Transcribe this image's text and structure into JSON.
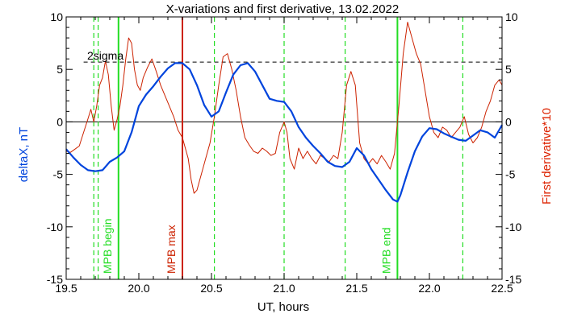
{
  "chart_data": {
    "type": "line",
    "title": "X-variations and first derivative, 13.02.2022",
    "xlabel": "UT, hours",
    "ylabel_left": "deltaX, nT",
    "ylabel_right": "First derivative*10",
    "xlim": [
      19.5,
      22.5
    ],
    "ylim": [
      -15,
      10
    ],
    "xticks": [
      19.5,
      20.0,
      20.5,
      21.0,
      21.5,
      22.0,
      22.5
    ],
    "xtick_labels": [
      "19.5",
      "20.0",
      "20.5",
      "21.0",
      "21.5",
      "22.0",
      "22.5"
    ],
    "yticks": [
      -15,
      -10,
      -5,
      0,
      5,
      10
    ],
    "ytick_labels": [
      "-15",
      "-10",
      "-5",
      "0",
      "5",
      "10"
    ],
    "colors": {
      "deltaX": "#0044dd",
      "derivative": "#cc2200",
      "mpb_max": "#cc2200",
      "mpb_lines": "#22dd22",
      "sigma": "#000000",
      "right_label": "#dd2200",
      "left_label": "#0044dd"
    },
    "sigma_level": 5.7,
    "sigma_label": "2sigma",
    "zero_line": 0,
    "mpb_begin": {
      "x": 19.86,
      "label": "MPB begin"
    },
    "mpb_max": {
      "x": 20.3,
      "label": "MPB max"
    },
    "mpb_end": {
      "x": 21.78,
      "label": "MPB end"
    },
    "dashed_green_x": [
      19.69,
      19.72,
      20.52,
      21.0,
      21.42,
      22.23
    ],
    "series": [
      {
        "key": "deltaX",
        "x": [
          19.5,
          19.55,
          19.6,
          19.65,
          19.7,
          19.75,
          19.8,
          19.85,
          19.9,
          19.95,
          20.0,
          20.05,
          20.1,
          20.15,
          20.2,
          20.25,
          20.3,
          20.35,
          20.4,
          20.45,
          20.5,
          20.55,
          20.6,
          20.65,
          20.7,
          20.75,
          20.8,
          20.85,
          20.9,
          20.95,
          21.0,
          21.05,
          21.1,
          21.15,
          21.2,
          21.25,
          21.3,
          21.35,
          21.4,
          21.45,
          21.5,
          21.55,
          21.6,
          21.65,
          21.7,
          21.75,
          21.78,
          21.8,
          21.85,
          21.9,
          21.95,
          22.0,
          22.05,
          22.1,
          22.15,
          22.2,
          22.25,
          22.3,
          22.35,
          22.4,
          22.45,
          22.5
        ],
        "y": [
          -2.6,
          -3.4,
          -4.1,
          -4.6,
          -4.7,
          -4.6,
          -3.8,
          -3.4,
          -2.8,
          -1.0,
          1.5,
          2.6,
          3.4,
          4.3,
          5.1,
          5.6,
          5.6,
          5.0,
          3.5,
          1.6,
          0.5,
          1.0,
          2.8,
          4.5,
          5.4,
          5.6,
          4.8,
          3.5,
          2.2,
          2.0,
          1.9,
          1.0,
          -0.5,
          -1.5,
          -2.3,
          -3.0,
          -3.8,
          -4.2,
          -4.3,
          -3.8,
          -2.5,
          -3.2,
          -4.5,
          -5.5,
          -6.5,
          -7.4,
          -7.6,
          -7.0,
          -4.8,
          -2.8,
          -1.4,
          -0.6,
          -0.7,
          -1.1,
          -1.4,
          -1.7,
          -1.8,
          -1.3,
          -0.8,
          -1.0,
          -1.5,
          -0.3
        ]
      },
      {
        "key": "derivative",
        "x": [
          19.5,
          19.53,
          19.56,
          19.59,
          19.62,
          19.65,
          19.67,
          19.69,
          19.71,
          19.73,
          19.75,
          19.77,
          19.79,
          19.81,
          19.83,
          19.85,
          19.87,
          19.89,
          19.91,
          19.93,
          19.95,
          19.97,
          19.99,
          20.01,
          20.03,
          20.06,
          20.09,
          20.12,
          20.15,
          20.18,
          20.21,
          20.24,
          20.27,
          20.3,
          20.32,
          20.34,
          20.36,
          20.38,
          20.4,
          20.43,
          20.46,
          20.49,
          20.52,
          20.55,
          20.58,
          20.61,
          20.64,
          20.67,
          20.7,
          20.73,
          20.76,
          20.79,
          20.82,
          20.85,
          20.88,
          20.91,
          20.94,
          20.97,
          21.0,
          21.02,
          21.04,
          21.07,
          21.1,
          21.13,
          21.16,
          21.19,
          21.22,
          21.25,
          21.28,
          21.31,
          21.34,
          21.37,
          21.4,
          21.43,
          21.46,
          21.49,
          21.52,
          21.55,
          21.58,
          21.61,
          21.64,
          21.67,
          21.7,
          21.73,
          21.76,
          21.79,
          21.82,
          21.85,
          21.88,
          21.91,
          21.94,
          21.97,
          22.0,
          22.03,
          22.06,
          22.09,
          22.12,
          22.15,
          22.18,
          22.21,
          22.24,
          22.27,
          22.3,
          22.33,
          22.36,
          22.39,
          22.42,
          22.45,
          22.48,
          22.5
        ],
        "y": [
          -2.8,
          -2.9,
          -2.6,
          -2.3,
          -1.0,
          0.3,
          1.2,
          0.0,
          1.5,
          3.5,
          4.2,
          5.8,
          4.5,
          1.5,
          -0.8,
          0.2,
          1.5,
          3.5,
          6.0,
          8.0,
          7.5,
          5.0,
          3.5,
          3.0,
          4.2,
          5.2,
          6.0,
          4.8,
          3.5,
          2.5,
          1.5,
          0.5,
          -0.8,
          -1.5,
          -2.5,
          -3.5,
          -5.5,
          -6.8,
          -6.5,
          -5.0,
          -3.5,
          -2.0,
          0.5,
          3.5,
          6.2,
          6.5,
          5.0,
          3.0,
          0.5,
          -1.5,
          -2.2,
          -2.8,
          -3.0,
          -2.5,
          -2.8,
          -3.2,
          -3.0,
          -1.0,
          0.0,
          -1.0,
          -3.5,
          -4.5,
          -2.5,
          -3.5,
          -2.8,
          -3.5,
          -4.0,
          -3.2,
          -3.5,
          -3.8,
          -3.2,
          -3.5,
          -1.0,
          3.5,
          4.8,
          3.5,
          -2.0,
          -3.5,
          -4.0,
          -3.5,
          -4.0,
          -3.2,
          -3.8,
          -4.5,
          -3.0,
          1.5,
          6.5,
          9.5,
          8.0,
          6.5,
          5.5,
          3.0,
          0.5,
          -1.0,
          -1.5,
          -0.5,
          -0.8,
          -1.5,
          -1.0,
          -0.5,
          0.5,
          -1.2,
          -2.0,
          -1.5,
          -0.5,
          1.0,
          2.0,
          3.5,
          4.0,
          3.5
        ]
      }
    ]
  }
}
